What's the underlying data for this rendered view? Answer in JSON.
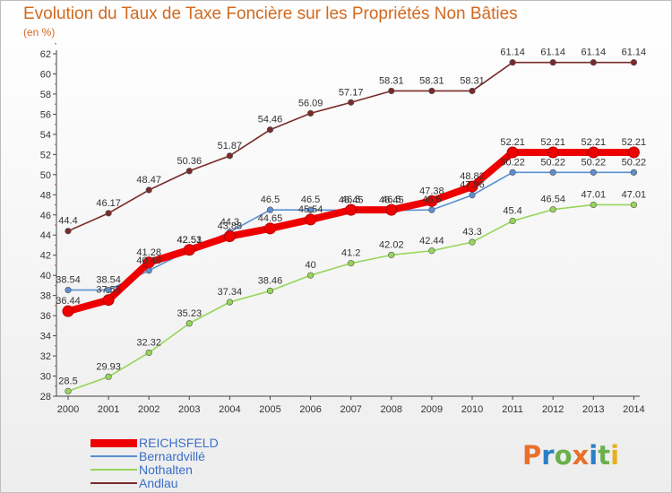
{
  "header": {
    "title": "Evolution du Taux de Taxe Foncière sur les Propriétés Non Bâties",
    "unit": "(en %)"
  },
  "logo": {
    "text": "Proxiti",
    "colors": [
      "#e8702a",
      "#2a80c8",
      "#6ab04c",
      "#e8702a",
      "#2a80c8",
      "#6ab04c",
      "#e8b020"
    ]
  },
  "chart_data": {
    "type": "line",
    "x": [
      "2000",
      "2001",
      "2002",
      "2003",
      "2004",
      "2005",
      "2006",
      "2007",
      "2008",
      "2009",
      "2010",
      "2011",
      "2012",
      "2013",
      "2014"
    ],
    "ylim": [
      28,
      62
    ],
    "yticks": [
      28,
      30,
      32,
      34,
      36,
      38,
      40,
      42,
      44,
      46,
      48,
      50,
      52,
      54,
      56,
      58,
      60,
      62
    ],
    "grid": false,
    "legend_position": "bottom-left",
    "series": [
      {
        "name": "Andlau",
        "color": "#7a2b2b",
        "values": [
          44.4,
          46.17,
          48.47,
          50.36,
          51.87,
          54.46,
          56.09,
          57.17,
          58.31,
          58.31,
          58.31,
          61.14,
          61.14,
          61.14,
          61.14
        ],
        "labels": [
          "44.4",
          "46.17",
          "48.47",
          "50.36",
          "51.87",
          "54.46",
          "56.09",
          "57.17",
          "58.31",
          "58.31",
          "58.31",
          "61.14",
          "61.14",
          "61.14",
          "61.14"
        ]
      },
      {
        "name": "Nothalten",
        "color": "#96d65a",
        "values": [
          28.5,
          29.93,
          32.32,
          35.23,
          37.34,
          38.46,
          40,
          41.2,
          42.02,
          42.44,
          43.3,
          45.4,
          46.54,
          47.01,
          47.01
        ],
        "labels": [
          "28.5",
          "29.93",
          "32.32",
          "35.23",
          "37.34",
          "38.46",
          "40",
          "41.2",
          "42.02",
          "42.44",
          "43.3",
          "45.4",
          "46.54",
          "47.01",
          "47.01"
        ]
      },
      {
        "name": "Bernardvillé",
        "color": "#5b8fd0",
        "values": [
          38.54,
          38.54,
          40.48,
          42.51,
          44.3,
          46.5,
          46.5,
          46.45,
          46.45,
          46.5,
          47.96,
          50.22,
          50.22,
          50.22,
          50.22
        ],
        "labels": [
          "38.54",
          "38.54",
          "40.48",
          "42.51",
          "44.3",
          "46.5",
          "46.5",
          "46.45",
          "46.45",
          "46.5",
          "47.96",
          "50.22",
          "50.22",
          "50.22",
          "50.22"
        ]
      },
      {
        "name": "REICHSFELD",
        "color": "#ee0000",
        "values": [
          36.44,
          37.55,
          41.28,
          42.53,
          43.88,
          44.65,
          45.54,
          46.5,
          46.5,
          47.38,
          48.82,
          52.21,
          52.21,
          52.21,
          52.21
        ],
        "labels": [
          "36.44",
          "37.55",
          "41.28",
          "42.53",
          "43.88",
          "44.65",
          "45.54",
          "46.5",
          "46.5",
          "47.38",
          "48.82",
          "52.21",
          "52.21",
          "52.21",
          "52.21"
        ]
      }
    ]
  }
}
